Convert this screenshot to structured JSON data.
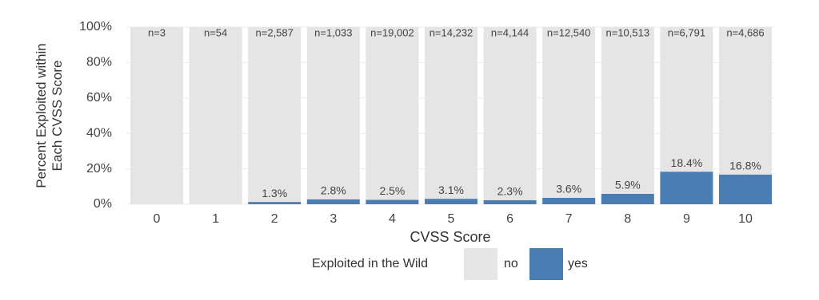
{
  "chart_data": {
    "type": "stacked_bar",
    "x_label": "CVSS Score",
    "y_label": [
      "Percent Exploited within",
      "Each CVSS Score"
    ],
    "categories": [
      "0",
      "1",
      "2",
      "3",
      "4",
      "5",
      "6",
      "7",
      "8",
      "9",
      "10"
    ],
    "n_labels": [
      "n=3",
      "n=54",
      "n=2,587",
      "n=1,033",
      "n=19,002",
      "n=14,232",
      "n=4,144",
      "n=12,540",
      "n=10,513",
      "n=6,791",
      "n=4,686"
    ],
    "legend_title": "Exploited in the Wild",
    "series": [
      {
        "name": "yes",
        "color": "#4a7db3",
        "values": [
          0,
          0,
          1.3,
          2.8,
          2.5,
          3.1,
          2.3,
          3.6,
          5.9,
          18.4,
          16.8
        ],
        "value_labels": [
          null,
          null,
          "1.3%",
          "2.8%",
          "2.5%",
          "3.1%",
          "2.3%",
          "3.6%",
          "5.9%",
          "18.4%",
          "16.8%"
        ]
      },
      {
        "name": "no",
        "color": "#e5e5e5",
        "values": [
          100,
          100,
          98.7,
          97.2,
          97.5,
          96.9,
          97.7,
          96.4,
          94.1,
          81.6,
          83.2
        ]
      }
    ],
    "ylim": [
      0,
      100
    ],
    "yticks": [
      {
        "value": 0,
        "label": "0%"
      },
      {
        "value": 20,
        "label": "20%"
      },
      {
        "value": 40,
        "label": "40%"
      },
      {
        "value": 60,
        "label": "60%"
      },
      {
        "value": 80,
        "label": "80%"
      },
      {
        "value": 100,
        "label": "100%"
      }
    ],
    "grid": true
  }
}
